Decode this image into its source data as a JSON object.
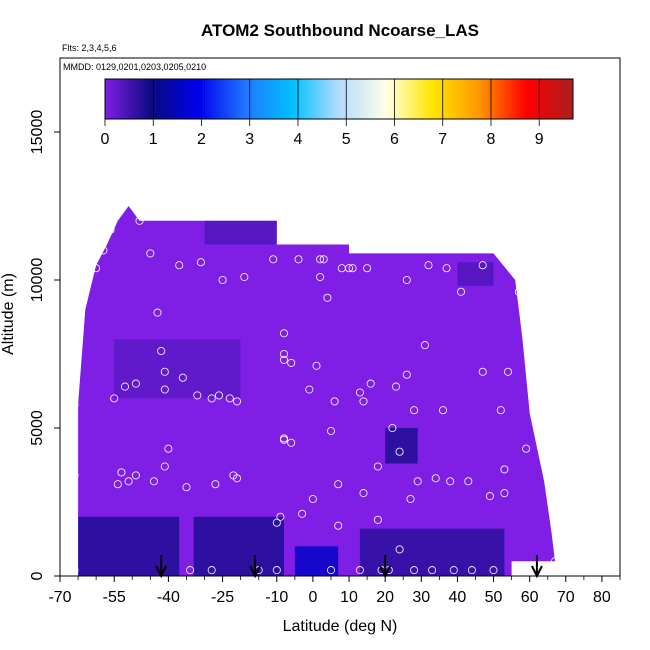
{
  "chart_data": {
    "type": "heatmap",
    "title": "ATOM2 Southbound Ncoarse_LAS",
    "annotations": [
      "Flts: 2,3,4,5,6",
      "MMDD: 0129,0201,0203,0205,0210"
    ],
    "xlabel": "Latitude (deg N)",
    "ylabel": "Altitude (m)",
    "xlim": [
      -70,
      85
    ],
    "ylim": [
      0,
      17500
    ],
    "x_ticks": [
      -70,
      -55,
      -40,
      -25,
      -10,
      0,
      10,
      20,
      30,
      40,
      50,
      60,
      70,
      80
    ],
    "x_tick_labels": [
      "-70",
      "-55",
      "-40",
      "-25",
      "-10",
      "0",
      "10",
      "20",
      "30",
      "40",
      "50",
      "60",
      "70",
      "80"
    ],
    "y_ticks": [
      0,
      5000,
      10000,
      15000
    ],
    "y_tick_labels": [
      "0",
      "5000",
      "10000",
      "15000"
    ],
    "colorbar": {
      "ticks": [
        0,
        1,
        2,
        3,
        4,
        5,
        6,
        7,
        8,
        9
      ],
      "tick_labels": [
        "0",
        "1",
        "2",
        "3",
        "4",
        "5",
        "6",
        "7",
        "8",
        "9"
      ],
      "range": [
        0,
        9.7
      ],
      "colors": [
        "#7f1fe6",
        "#0a0a80",
        "#0000ee",
        "#1e78ff",
        "#00c0ff",
        "#b4dcff",
        "#ffffe6",
        "#ffe600",
        "#ff9600",
        "#ff0000",
        "#aa1e1e"
      ]
    },
    "coverage_outline": [
      [
        -65,
        0
      ],
      [
        -65,
        5800
      ],
      [
        -63,
        9000
      ],
      [
        -60,
        10500
      ],
      [
        -57,
        11200
      ],
      [
        -54,
        12000
      ],
      [
        -51,
        12500
      ],
      [
        -48,
        12000
      ],
      [
        -10,
        12000
      ],
      [
        -10,
        11200
      ],
      [
        10,
        11200
      ],
      [
        10,
        10900
      ],
      [
        50,
        10900
      ],
      [
        56,
        10000
      ],
      [
        58,
        8000
      ],
      [
        60,
        5500
      ],
      [
        64,
        3200
      ],
      [
        66,
        1500
      ],
      [
        67,
        500
      ],
      [
        55,
        500
      ],
      [
        55,
        0
      ]
    ],
    "field_regions": [
      {
        "polygon": [
          [
            -65,
            0
          ],
          [
            -65,
            2000
          ],
          [
            -37,
            2000
          ],
          [
            -37,
            0
          ]
        ],
        "value": 0.8
      },
      {
        "polygon": [
          [
            -33,
            0
          ],
          [
            -33,
            2000
          ],
          [
            -8,
            2000
          ],
          [
            -8,
            0
          ]
        ],
        "value": 0.8
      },
      {
        "polygon": [
          [
            -5,
            0
          ],
          [
            -5,
            1000
          ],
          [
            7,
            1000
          ],
          [
            7,
            0
          ]
        ],
        "value": 1.6
      },
      {
        "polygon": [
          [
            13,
            0
          ],
          [
            13,
            1600
          ],
          [
            53,
            1600
          ],
          [
            53,
            0
          ]
        ],
        "value": 0.7
      },
      {
        "polygon": [
          [
            20,
            3800
          ],
          [
            20,
            5000
          ],
          [
            29,
            5000
          ],
          [
            29,
            3800
          ]
        ],
        "value": 0.8
      },
      {
        "polygon": [
          [
            -55,
            6000
          ],
          [
            -55,
            8000
          ],
          [
            -20,
            8000
          ],
          [
            -20,
            6000
          ]
        ],
        "value": 0.3
      },
      {
        "polygon": [
          [
            -30,
            11200
          ],
          [
            -30,
            12000
          ],
          [
            -10,
            12000
          ],
          [
            -10,
            11200
          ]
        ],
        "value": 0.4
      },
      {
        "polygon": [
          [
            40,
            9800
          ],
          [
            40,
            10600
          ],
          [
            50,
            10600
          ],
          [
            50,
            9800
          ]
        ],
        "value": 0.4
      }
    ],
    "sample_points": [
      [
        -66,
        200
      ],
      [
        -66,
        3400
      ],
      [
        -66,
        5800
      ],
      [
        -63,
        9800
      ],
      [
        -60,
        10400
      ],
      [
        -58,
        11000
      ],
      [
        -56,
        11700
      ],
      [
        -55,
        6000
      ],
      [
        -54,
        3100
      ],
      [
        -53,
        3500
      ],
      [
        -52,
        6400
      ],
      [
        -51,
        3200
      ],
      [
        -49,
        3400
      ],
      [
        -49,
        6500
      ],
      [
        -48,
        12000
      ],
      [
        -46,
        12300
      ],
      [
        -45,
        10900
      ],
      [
        -44,
        3200
      ],
      [
        -43,
        8900
      ],
      [
        -42,
        7600
      ],
      [
        -41,
        6300
      ],
      [
        -41,
        3700
      ],
      [
        -40,
        4300
      ],
      [
        -41,
        6900
      ],
      [
        -37,
        10500
      ],
      [
        -36,
        6700
      ],
      [
        -35,
        3000
      ],
      [
        -34,
        200
      ],
      [
        -32,
        6100
      ],
      [
        -31,
        10600
      ],
      [
        -28,
        6000
      ],
      [
        -28,
        200
      ],
      [
        -27,
        3100
      ],
      [
        -26,
        6100
      ],
      [
        -25,
        10000
      ],
      [
        -23,
        6000
      ],
      [
        -22,
        3400
      ],
      [
        -21,
        3300
      ],
      [
        -21,
        5900
      ],
      [
        -19,
        10100
      ],
      [
        -15,
        200
      ],
      [
        -11,
        10700
      ],
      [
        -10,
        1800
      ],
      [
        -10,
        200
      ],
      [
        -9,
        2000
      ],
      [
        -8,
        4600
      ],
      [
        -8,
        4650
      ],
      [
        -8,
        7300
      ],
      [
        -8,
        7500
      ],
      [
        -8,
        8200
      ],
      [
        -6,
        4500
      ],
      [
        -6,
        7200
      ],
      [
        -4,
        10700
      ],
      [
        -3,
        2100
      ],
      [
        -1,
        6300
      ],
      [
        0,
        2600
      ],
      [
        1,
        7100
      ],
      [
        2,
        10100
      ],
      [
        2,
        10700
      ],
      [
        3,
        10700
      ],
      [
        4,
        9400
      ],
      [
        5,
        4900
      ],
      [
        5,
        200
      ],
      [
        6,
        5900
      ],
      [
        7,
        3100
      ],
      [
        7,
        1700
      ],
      [
        8,
        10400
      ],
      [
        10,
        10400
      ],
      [
        11,
        10400
      ],
      [
        13,
        6200
      ],
      [
        13,
        200
      ],
      [
        14,
        2800
      ],
      [
        14,
        5900
      ],
      [
        15,
        10400
      ],
      [
        16,
        6500
      ],
      [
        18,
        1900
      ],
      [
        18,
        3700
      ],
      [
        19,
        200
      ],
      [
        21,
        200
      ],
      [
        22,
        5000
      ],
      [
        23,
        6400
      ],
      [
        24,
        4200
      ],
      [
        24,
        900
      ],
      [
        26,
        10000
      ],
      [
        26,
        6800
      ],
      [
        27,
        2600
      ],
      [
        28,
        200
      ],
      [
        28,
        5600
      ],
      [
        29,
        3200
      ],
      [
        31,
        7800
      ],
      [
        32,
        10500
      ],
      [
        33,
        200
      ],
      [
        34,
        3300
      ],
      [
        36,
        5600
      ],
      [
        37,
        10400
      ],
      [
        38,
        3200
      ],
      [
        39,
        200
      ],
      [
        41,
        9600
      ],
      [
        43,
        3200
      ],
      [
        44,
        200
      ],
      [
        47,
        10500
      ],
      [
        47,
        6900
      ],
      [
        49,
        2700
      ],
      [
        50,
        200
      ],
      [
        52,
        5600
      ],
      [
        53,
        3600
      ],
      [
        53,
        2800
      ],
      [
        54,
        6900
      ],
      [
        57,
        9600
      ],
      [
        59,
        4300
      ],
      [
        67,
        500
      ]
    ],
    "arrows_latitude": [
      -42,
      -16,
      20,
      62
    ]
  }
}
